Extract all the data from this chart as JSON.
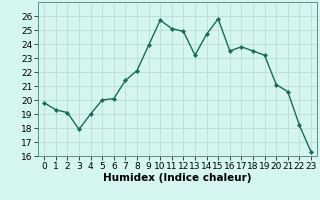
{
  "x": [
    0,
    1,
    2,
    3,
    4,
    5,
    6,
    7,
    8,
    9,
    10,
    11,
    12,
    13,
    14,
    15,
    16,
    17,
    18,
    19,
    20,
    21,
    22,
    23
  ],
  "y": [
    19.8,
    19.3,
    19.1,
    17.9,
    19.0,
    20.0,
    20.1,
    21.4,
    22.1,
    23.9,
    25.7,
    25.1,
    24.9,
    23.2,
    24.7,
    25.8,
    23.5,
    23.8,
    23.5,
    23.2,
    21.1,
    20.6,
    18.2,
    16.3
  ],
  "line_color": "#1a6b5a",
  "marker": "D",
  "marker_size": 2.0,
  "bg_color": "#d4f5f0",
  "grid_color": "#b8d8d2",
  "xlabel": "Humidex (Indice chaleur)",
  "ylim": [
    16,
    27
  ],
  "yticks": [
    16,
    17,
    18,
    19,
    20,
    21,
    22,
    23,
    24,
    25,
    26
  ],
  "xticks": [
    0,
    1,
    2,
    3,
    4,
    5,
    6,
    7,
    8,
    9,
    10,
    11,
    12,
    13,
    14,
    15,
    16,
    17,
    18,
    19,
    20,
    21,
    22,
    23
  ],
  "xlabel_fontsize": 7.5,
  "tick_fontsize": 6.5,
  "linewidth": 1.0
}
